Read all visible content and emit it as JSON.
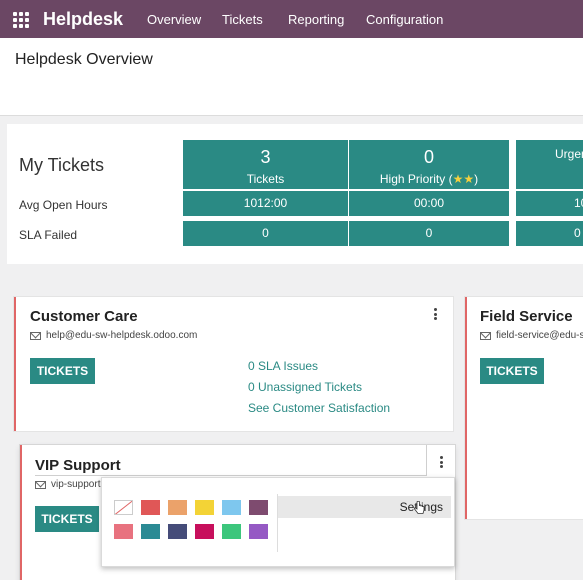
{
  "navbar": {
    "brand": "Helpdesk",
    "menu": [
      "Overview",
      "Tickets",
      "Reporting",
      "Configuration"
    ]
  },
  "page": {
    "title": "Helpdesk Overview"
  },
  "my_tickets": {
    "title": "My Tickets",
    "row_labels": [
      "Avg Open Hours",
      "SLA Failed"
    ],
    "columns": [
      {
        "count": "3",
        "label": "Tickets",
        "avg_open_hours": "1012:00",
        "sla_failed": "0"
      },
      {
        "count": "0",
        "label": "High Priority (",
        "stars": "★★",
        "label_end": ")",
        "avg_open_hours": "00:00",
        "sla_failed": "0"
      },
      {
        "count": "",
        "label": "Urgen",
        "avg_open_hours": "10",
        "sla_failed": "0"
      }
    ]
  },
  "teams": [
    {
      "name": "Customer Care",
      "email": "help@edu-sw-helpdesk.odoo.com",
      "button": "TICKETS",
      "links": [
        "0 SLA Issues",
        "0 Unassigned Tickets",
        "See Customer Satisfaction"
      ]
    },
    {
      "name": "Field Service",
      "email": "field-service@edu-sw-",
      "button": "TICKETS"
    },
    {
      "name": "VIP Support",
      "email": "vip-support@",
      "button": "TICKETS"
    }
  ],
  "dropdown": {
    "colors": [
      "#ffffff",
      "#e05757",
      "#eba26a",
      "#f3d336",
      "#7ec7ee",
      "#7e4b6f",
      "#e8727f",
      "#2b8a94",
      "#454c79",
      "#c70f5c",
      "#3cc67c",
      "#9559c4"
    ],
    "settings_label": "Settings"
  },
  "theme": {
    "accent": "#2a8a84",
    "navbar": "#6b4764",
    "team_border": "#e06666"
  }
}
